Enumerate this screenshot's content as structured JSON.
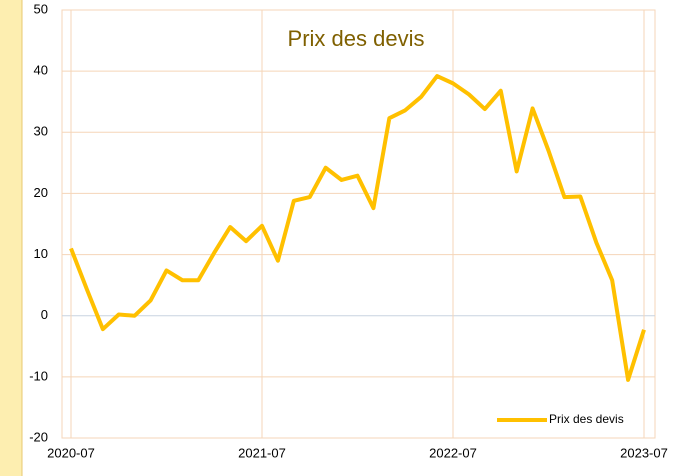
{
  "chart_data": {
    "type": "line",
    "title": "Prix des devis",
    "x": [
      "2020-07",
      "2020-08",
      "2020-09",
      "2020-10",
      "2020-11",
      "2020-12",
      "2021-01",
      "2021-02",
      "2021-03",
      "2021-04",
      "2021-05",
      "2021-06",
      "2021-07",
      "2021-08",
      "2021-09",
      "2021-10",
      "2021-11",
      "2021-12",
      "2022-01",
      "2022-02",
      "2022-03",
      "2022-04",
      "2022-05",
      "2022-06",
      "2022-07",
      "2022-08",
      "2022-09",
      "2022-10",
      "2022-11",
      "2022-12",
      "2023-01",
      "2023-02",
      "2023-03",
      "2023-04",
      "2023-05",
      "2023-06",
      "2023-07"
    ],
    "series": [
      {
        "name": "Prix des devis",
        "color": "#ffc000",
        "values": [
          11,
          4.3,
          -2.2,
          0.2,
          0,
          2.5,
          7.4,
          5.8,
          5.8,
          10.3,
          14.5,
          12.2,
          14.7,
          9,
          18.8,
          19.4,
          24.2,
          22.2,
          22.9,
          17.6,
          32.3,
          33.6,
          35.8,
          39.2,
          38,
          36.2,
          33.8,
          36.8,
          23.6,
          33.9,
          27,
          19.4,
          19.5,
          12,
          5.8,
          -10.5,
          -2.3
        ]
      }
    ],
    "xticks": [
      "2020-07",
      "2021-07",
      "2022-07",
      "2023-07"
    ],
    "ylim": [
      -20,
      50
    ],
    "yticks": [
      -20,
      -10,
      0,
      10,
      20,
      30,
      40,
      50
    ],
    "grid": true,
    "legend": "lower right"
  }
}
